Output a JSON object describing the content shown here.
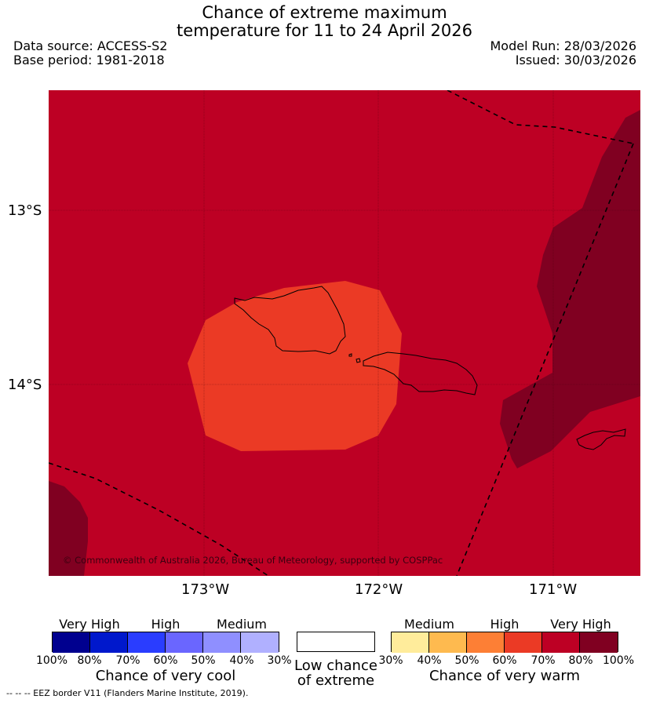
{
  "title": {
    "line1": "Chance of extreme maximum",
    "line2": "temperature for 11 to 24 April 2026"
  },
  "meta": {
    "data_source": "Data source: ACCESS-S2",
    "base_period": "Base period: 1981-2018",
    "model_run": "Model Run: 28/03/2026",
    "issued": "Issued: 30/03/2026"
  },
  "axes": {
    "lat_labels": [
      "13°S",
      "14°S"
    ],
    "lon_labels": [
      "173°W",
      "172°W",
      "171°W"
    ]
  },
  "map": {
    "copyright": "© Commonwealth of Australia 2026, Bureau of Meteorology, supported by COSPPac",
    "colors": {
      "background": "#bd0024",
      "very_high_dark": "#800021",
      "high_region": "#eb3a25",
      "coast": "#000000"
    }
  },
  "legend": {
    "cool": {
      "categories": [
        "Very High",
        "High",
        "Medium"
      ],
      "ticks": [
        "100%",
        "80%",
        "70%",
        "60%",
        "50%",
        "40%",
        "30%"
      ],
      "colors": [
        "#00008f",
        "#0018cc",
        "#2a3dff",
        "#6a66ff",
        "#8f8fff",
        "#b0b0ff"
      ],
      "caption": "Chance of very cool"
    },
    "neutral": {
      "caption_line1": "Low chance",
      "caption_line2": "of extreme"
    },
    "warm": {
      "categories": [
        "Medium",
        "High",
        "Very High"
      ],
      "ticks": [
        "30%",
        "40%",
        "50%",
        "60%",
        "70%",
        "80%",
        "100%"
      ],
      "colors": [
        "#ffec9b",
        "#feba4f",
        "#fd7f35",
        "#eb3a25",
        "#bd0024",
        "#800021"
      ],
      "caption": "Chance of very warm"
    }
  },
  "footer": {
    "eez_note": "--  --  -- EEZ border V11 (Flanders Marine Institute, 2019)."
  }
}
